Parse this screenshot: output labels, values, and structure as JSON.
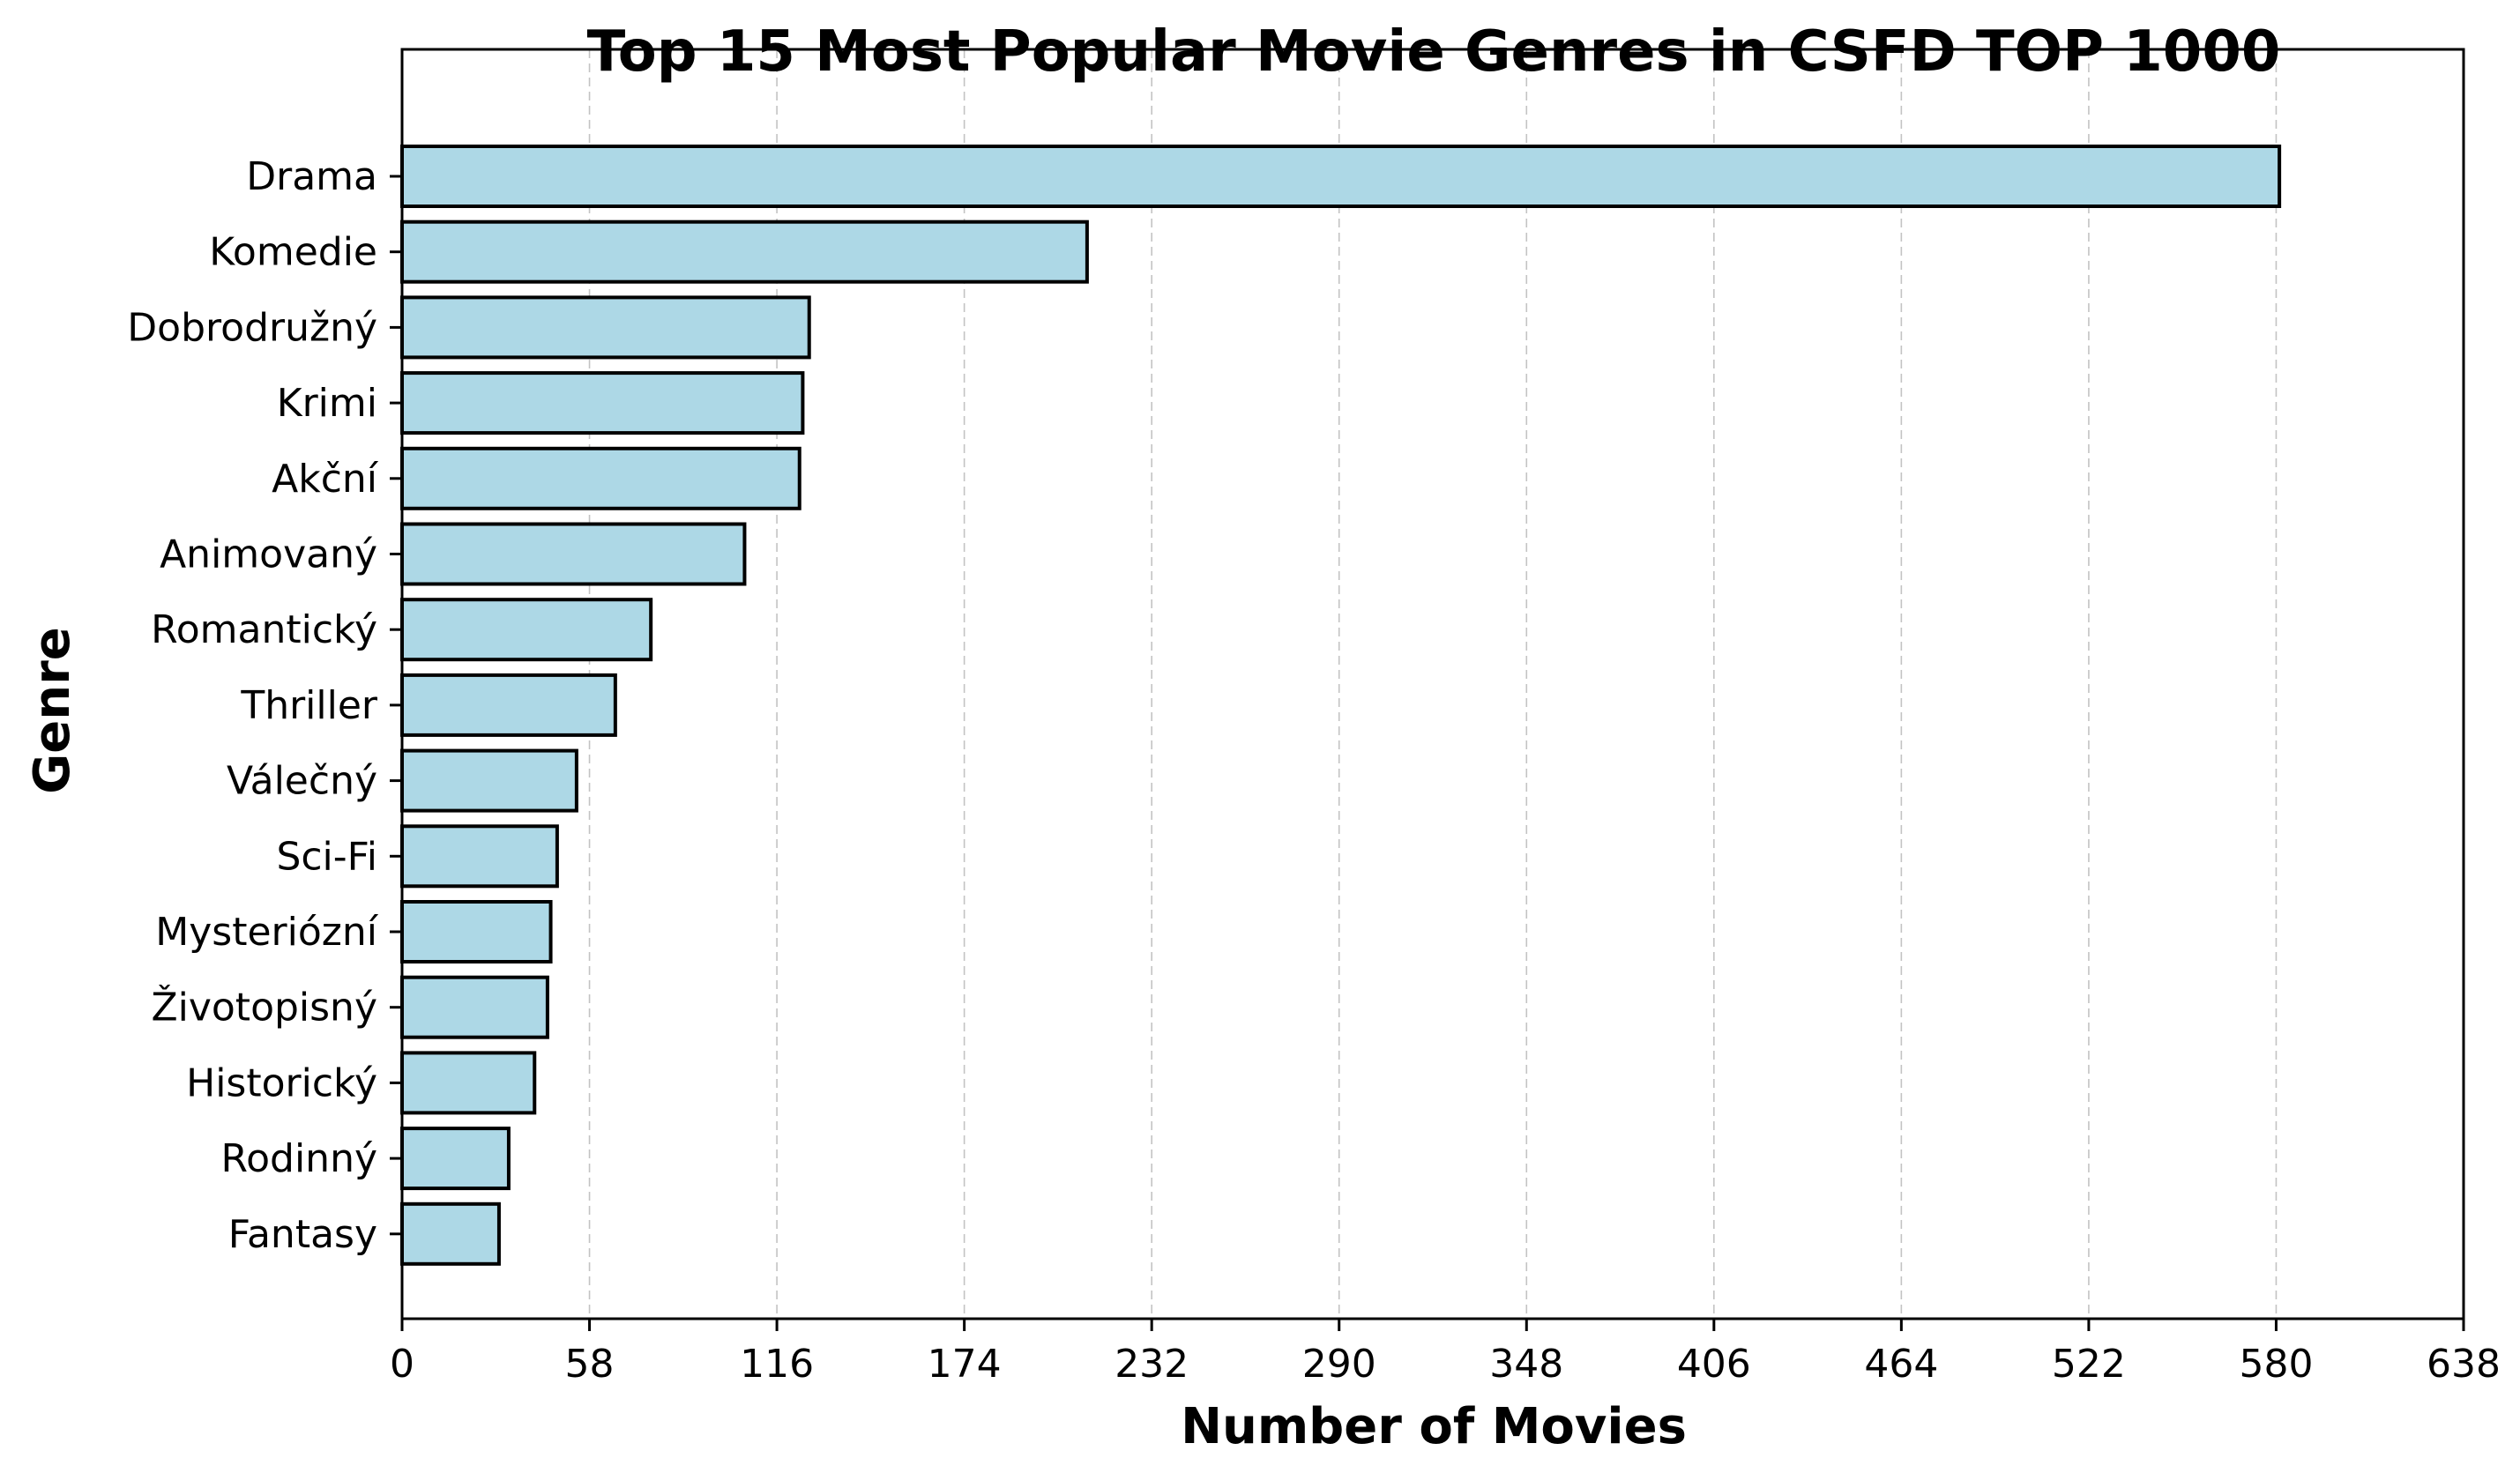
{
  "chart_data": {
    "type": "bar",
    "orientation": "horizontal",
    "title": "Top 15 Most Popular Movie Genres in CSFD TOP 1000",
    "xlabel": "Number of Movies",
    "ylabel": "Genre",
    "xlim": [
      0,
      638
    ],
    "xticks": [
      0,
      58,
      116,
      174,
      232,
      290,
      348,
      406,
      464,
      522,
      580,
      638
    ],
    "xtick_labels": [
      "0",
      "58",
      "116",
      "174",
      "232",
      "290",
      "348",
      "406",
      "464",
      "522",
      "580",
      "638"
    ],
    "grid": "x-dashed",
    "bar_color": "#add8e6",
    "edge_color": "#000000",
    "categories": [
      "Drama",
      "Komedie",
      "Dobrodružný",
      "Krimi",
      "Akční",
      "Animovaný",
      "Romantický",
      "Thriller",
      "Válečný",
      "Sci-Fi",
      "Mysteriózní",
      "Životopisný",
      "Historický",
      "Rodinný",
      "Fantasy"
    ],
    "values": [
      581,
      212,
      126,
      124,
      123,
      106,
      77,
      66,
      54,
      48,
      46,
      45,
      41,
      33,
      30
    ]
  }
}
